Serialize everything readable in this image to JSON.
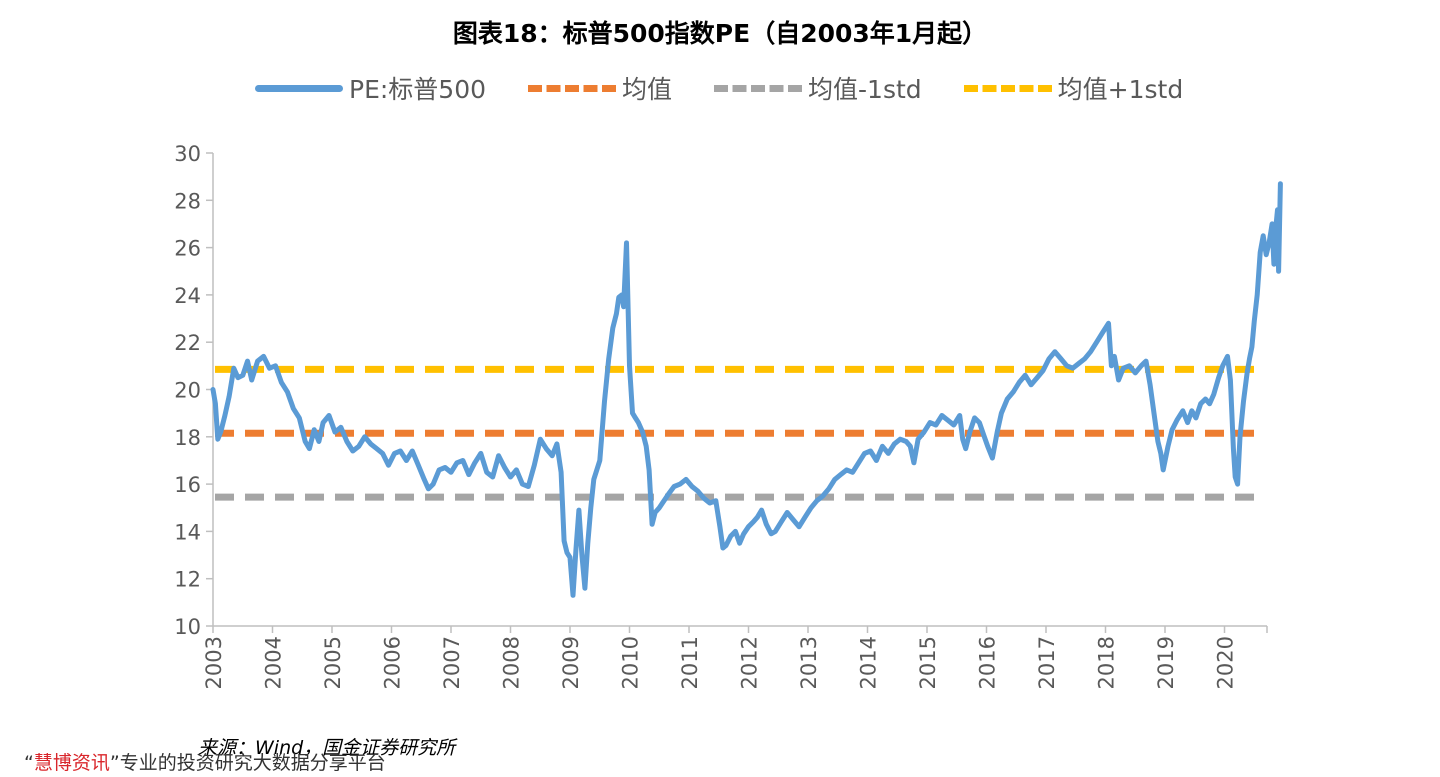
{
  "chart_data": {
    "type": "line",
    "title": "图表18：标普500指数PE（自2003年1月起）",
    "ylim": [
      10,
      30
    ],
    "yticks": [
      10,
      12,
      14,
      16,
      18,
      20,
      22,
      24,
      26,
      28,
      30
    ],
    "xlim": [
      2003.0,
      2020.95
    ],
    "xticks": [
      "2003",
      "2004",
      "2005",
      "2006",
      "2007",
      "2008",
      "2009",
      "2010",
      "2011",
      "2012",
      "2013",
      "2014",
      "2015",
      "2016",
      "2017",
      "2018",
      "2019",
      "2020"
    ],
    "grid": false,
    "legend_position": "top",
    "series": [
      {
        "name": "PE:标普500",
        "color": "#5B9BD5",
        "style": "solid",
        "points": [
          [
            2003.0,
            20.0
          ],
          [
            2003.04,
            19.4
          ],
          [
            2003.08,
            17.9
          ],
          [
            2003.13,
            18.2
          ],
          [
            2003.2,
            18.9
          ],
          [
            2003.27,
            19.7
          ],
          [
            2003.35,
            20.9
          ],
          [
            2003.42,
            20.5
          ],
          [
            2003.5,
            20.6
          ],
          [
            2003.58,
            21.2
          ],
          [
            2003.65,
            20.4
          ],
          [
            2003.75,
            21.2
          ],
          [
            2003.85,
            21.4
          ],
          [
            2003.95,
            20.9
          ],
          [
            2004.05,
            21.0
          ],
          [
            2004.15,
            20.3
          ],
          [
            2004.25,
            19.9
          ],
          [
            2004.35,
            19.2
          ],
          [
            2004.45,
            18.8
          ],
          [
            2004.55,
            17.8
          ],
          [
            2004.62,
            17.5
          ],
          [
            2004.7,
            18.3
          ],
          [
            2004.78,
            17.8
          ],
          [
            2004.85,
            18.6
          ],
          [
            2004.95,
            18.9
          ],
          [
            2005.05,
            18.2
          ],
          [
            2005.15,
            18.4
          ],
          [
            2005.25,
            17.8
          ],
          [
            2005.35,
            17.4
          ],
          [
            2005.45,
            17.6
          ],
          [
            2005.55,
            18.0
          ],
          [
            2005.65,
            17.7
          ],
          [
            2005.75,
            17.5
          ],
          [
            2005.85,
            17.3
          ],
          [
            2005.95,
            16.8
          ],
          [
            2006.05,
            17.3
          ],
          [
            2006.15,
            17.4
          ],
          [
            2006.25,
            17.0
          ],
          [
            2006.35,
            17.4
          ],
          [
            2006.45,
            16.8
          ],
          [
            2006.55,
            16.2
          ],
          [
            2006.62,
            15.8
          ],
          [
            2006.7,
            16.0
          ],
          [
            2006.8,
            16.6
          ],
          [
            2006.9,
            16.7
          ],
          [
            2007.0,
            16.5
          ],
          [
            2007.1,
            16.9
          ],
          [
            2007.2,
            17.0
          ],
          [
            2007.3,
            16.4
          ],
          [
            2007.4,
            16.9
          ],
          [
            2007.5,
            17.3
          ],
          [
            2007.6,
            16.5
          ],
          [
            2007.7,
            16.3
          ],
          [
            2007.8,
            17.2
          ],
          [
            2007.9,
            16.7
          ],
          [
            2008.0,
            16.3
          ],
          [
            2008.1,
            16.6
          ],
          [
            2008.2,
            16.0
          ],
          [
            2008.3,
            15.9
          ],
          [
            2008.4,
            16.8
          ],
          [
            2008.5,
            17.9
          ],
          [
            2008.6,
            17.5
          ],
          [
            2008.7,
            17.2
          ],
          [
            2008.78,
            17.7
          ],
          [
            2008.85,
            16.5
          ],
          [
            2008.9,
            13.6
          ],
          [
            2008.95,
            13.1
          ],
          [
            2009.0,
            12.9
          ],
          [
            2009.05,
            11.3
          ],
          [
            2009.1,
            13.2
          ],
          [
            2009.15,
            14.9
          ],
          [
            2009.2,
            13.0
          ],
          [
            2009.25,
            11.6
          ],
          [
            2009.3,
            13.5
          ],
          [
            2009.35,
            15.0
          ],
          [
            2009.4,
            16.2
          ],
          [
            2009.5,
            17.0
          ],
          [
            2009.58,
            19.5
          ],
          [
            2009.65,
            21.3
          ],
          [
            2009.72,
            22.6
          ],
          [
            2009.78,
            23.2
          ],
          [
            2009.82,
            23.9
          ],
          [
            2009.87,
            24.0
          ],
          [
            2009.9,
            23.5
          ],
          [
            2009.95,
            26.2
          ],
          [
            2010.0,
            21.0
          ],
          [
            2010.05,
            19.0
          ],
          [
            2010.1,
            18.8
          ],
          [
            2010.15,
            18.6
          ],
          [
            2010.22,
            18.2
          ],
          [
            2010.28,
            17.6
          ],
          [
            2010.33,
            16.6
          ],
          [
            2010.38,
            14.3
          ],
          [
            2010.43,
            14.8
          ],
          [
            2010.5,
            15.0
          ],
          [
            2010.58,
            15.3
          ],
          [
            2010.66,
            15.6
          ],
          [
            2010.75,
            15.9
          ],
          [
            2010.85,
            16.0
          ],
          [
            2010.95,
            16.2
          ],
          [
            2011.05,
            15.9
          ],
          [
            2011.15,
            15.7
          ],
          [
            2011.25,
            15.4
          ],
          [
            2011.35,
            15.2
          ],
          [
            2011.45,
            15.3
          ],
          [
            2011.52,
            14.2
          ],
          [
            2011.57,
            13.3
          ],
          [
            2011.62,
            13.4
          ],
          [
            2011.7,
            13.8
          ],
          [
            2011.78,
            14.0
          ],
          [
            2011.85,
            13.5
          ],
          [
            2011.92,
            13.9
          ],
          [
            2012.0,
            14.2
          ],
          [
            2012.08,
            14.4
          ],
          [
            2012.15,
            14.6
          ],
          [
            2012.22,
            14.9
          ],
          [
            2012.3,
            14.3
          ],
          [
            2012.38,
            13.9
          ],
          [
            2012.45,
            14.0
          ],
          [
            2012.55,
            14.4
          ],
          [
            2012.65,
            14.8
          ],
          [
            2012.75,
            14.5
          ],
          [
            2012.85,
            14.2
          ],
          [
            2012.95,
            14.6
          ],
          [
            2013.05,
            15.0
          ],
          [
            2013.15,
            15.3
          ],
          [
            2013.25,
            15.5
          ],
          [
            2013.35,
            15.8
          ],
          [
            2013.45,
            16.2
          ],
          [
            2013.55,
            16.4
          ],
          [
            2013.65,
            16.6
          ],
          [
            2013.75,
            16.5
          ],
          [
            2013.85,
            16.9
          ],
          [
            2013.95,
            17.3
          ],
          [
            2014.05,
            17.4
          ],
          [
            2014.15,
            17.0
          ],
          [
            2014.25,
            17.6
          ],
          [
            2014.35,
            17.3
          ],
          [
            2014.45,
            17.7
          ],
          [
            2014.55,
            17.9
          ],
          [
            2014.65,
            17.8
          ],
          [
            2014.72,
            17.6
          ],
          [
            2014.78,
            16.9
          ],
          [
            2014.85,
            17.9
          ],
          [
            2014.95,
            18.2
          ],
          [
            2015.05,
            18.6
          ],
          [
            2015.15,
            18.5
          ],
          [
            2015.25,
            18.9
          ],
          [
            2015.35,
            18.7
          ],
          [
            2015.45,
            18.5
          ],
          [
            2015.55,
            18.9
          ],
          [
            2015.6,
            17.9
          ],
          [
            2015.65,
            17.5
          ],
          [
            2015.72,
            18.2
          ],
          [
            2015.8,
            18.8
          ],
          [
            2015.88,
            18.6
          ],
          [
            2015.95,
            18.1
          ],
          [
            2016.02,
            17.6
          ],
          [
            2016.1,
            17.1
          ],
          [
            2016.18,
            18.2
          ],
          [
            2016.25,
            19.0
          ],
          [
            2016.35,
            19.6
          ],
          [
            2016.45,
            19.9
          ],
          [
            2016.55,
            20.3
          ],
          [
            2016.65,
            20.6
          ],
          [
            2016.75,
            20.2
          ],
          [
            2016.85,
            20.5
          ],
          [
            2016.95,
            20.8
          ],
          [
            2017.05,
            21.3
          ],
          [
            2017.15,
            21.6
          ],
          [
            2017.25,
            21.3
          ],
          [
            2017.35,
            21.0
          ],
          [
            2017.45,
            20.9
          ],
          [
            2017.55,
            21.1
          ],
          [
            2017.65,
            21.3
          ],
          [
            2017.75,
            21.6
          ],
          [
            2017.85,
            22.0
          ],
          [
            2017.95,
            22.4
          ],
          [
            2018.05,
            22.8
          ],
          [
            2018.1,
            21.0
          ],
          [
            2018.15,
            21.4
          ],
          [
            2018.22,
            20.4
          ],
          [
            2018.3,
            20.9
          ],
          [
            2018.4,
            21.0
          ],
          [
            2018.5,
            20.7
          ],
          [
            2018.6,
            21.0
          ],
          [
            2018.68,
            21.2
          ],
          [
            2018.75,
            20.2
          ],
          [
            2018.82,
            18.9
          ],
          [
            2018.88,
            17.8
          ],
          [
            2018.93,
            17.3
          ],
          [
            2018.97,
            16.6
          ],
          [
            2019.05,
            17.6
          ],
          [
            2019.12,
            18.3
          ],
          [
            2019.2,
            18.7
          ],
          [
            2019.3,
            19.1
          ],
          [
            2019.38,
            18.6
          ],
          [
            2019.45,
            19.1
          ],
          [
            2019.52,
            18.8
          ],
          [
            2019.6,
            19.4
          ],
          [
            2019.68,
            19.6
          ],
          [
            2019.75,
            19.4
          ],
          [
            2019.82,
            19.8
          ],
          [
            2019.9,
            20.5
          ],
          [
            2019.97,
            21.0
          ],
          [
            2020.05,
            21.4
          ],
          [
            2020.1,
            20.4
          ],
          [
            2020.15,
            17.5
          ],
          [
            2020.18,
            16.3
          ],
          [
            2020.22,
            16.0
          ],
          [
            2020.26,
            18.0
          ],
          [
            2020.32,
            19.5
          ],
          [
            2020.38,
            20.7
          ],
          [
            2020.42,
            21.3
          ],
          [
            2020.46,
            21.8
          ],
          [
            2020.5,
            22.9
          ],
          [
            2020.55,
            24.0
          ],
          [
            2020.6,
            25.8
          ],
          [
            2020.65,
            26.5
          ],
          [
            2020.7,
            25.7
          ],
          [
            2020.75,
            26.2
          ],
          [
            2020.8,
            27.0
          ],
          [
            2020.83,
            25.3
          ],
          [
            2020.86,
            26.8
          ],
          [
            2020.89,
            27.6
          ],
          [
            2020.91,
            25.0
          ],
          [
            2020.94,
            28.7
          ]
        ]
      },
      {
        "name": "均值",
        "color": "#ED7D31",
        "style": "dashed",
        "value": 18.15
      },
      {
        "name": "均值-1std",
        "color": "#A5A5A5",
        "style": "dashed",
        "value": 15.45
      },
      {
        "name": "均值+1std",
        "color": "#FFC000",
        "style": "dashed",
        "value": 20.85
      }
    ]
  },
  "source": "来源：Wind，国金证券研究所",
  "watermark": {
    "quote_open": "“",
    "brand": "慧博资讯",
    "quote_close": "”",
    "tagline": "专业的投资研究大数据分享平台"
  }
}
